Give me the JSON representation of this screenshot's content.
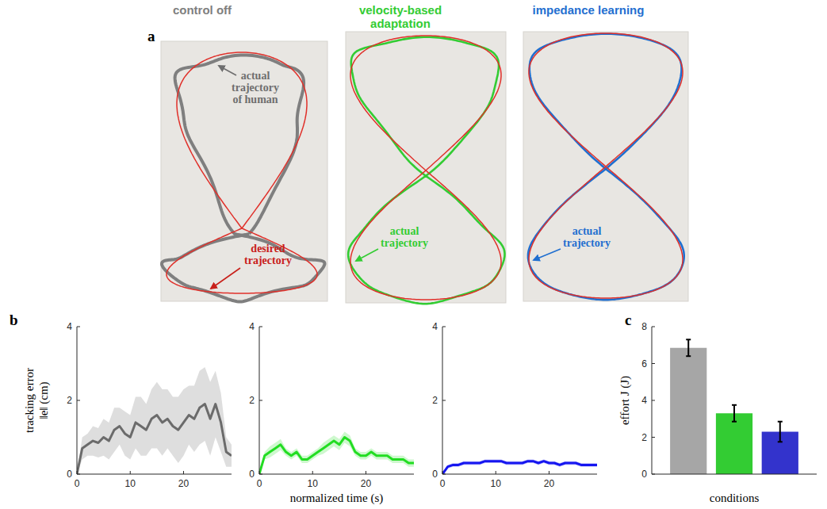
{
  "figure": {
    "panel_labels": [
      "a",
      "b",
      "c"
    ],
    "trajectory_panels": [
      {
        "title": "control off",
        "color": "#7f7f7f",
        "annotations": [
          {
            "lines": [
              "actual",
              "trajectory",
              "of human"
            ],
            "color": "#6e6e6e"
          },
          {
            "lines": [
              "desired",
              "trajectory"
            ],
            "color": "#c8201a"
          }
        ]
      },
      {
        "title": "velocity-based adaptation",
        "color": "#33cc33",
        "annotations": [
          {
            "lines": [
              "actual",
              "trajectory"
            ],
            "color": "#33cc33"
          }
        ]
      },
      {
        "title": "impedance learning",
        "color": "#1f6fd0",
        "annotations": [
          {
            "lines": [
              "actual",
              "trajectory"
            ],
            "color": "#1f6fd0"
          }
        ]
      }
    ]
  },
  "chart_data": [
    {
      "type": "line",
      "y_label": "tracking error ‖e‖ (cm)",
      "x": [
        0,
        1,
        2,
        3,
        4,
        5,
        6,
        7,
        8,
        9,
        10,
        11,
        12,
        13,
        14,
        15,
        16,
        17,
        18,
        19,
        20,
        21,
        22,
        23,
        24,
        25,
        26,
        27,
        28,
        29
      ],
      "xlim": [
        0,
        29
      ],
      "xticks": [
        0,
        10,
        20
      ],
      "ylim": [
        0,
        4
      ],
      "yticks": [
        0,
        2,
        4
      ],
      "series": [
        {
          "color": "#6b6b6b",
          "values": [
            0,
            0.7,
            0.8,
            0.9,
            0.85,
            1.0,
            0.9,
            1.2,
            1.3,
            1.1,
            1.0,
            1.4,
            1.3,
            1.2,
            1.5,
            1.6,
            1.4,
            1.5,
            1.3,
            1.2,
            1.4,
            1.6,
            1.5,
            1.8,
            1.9,
            1.5,
            1.9,
            1.4,
            0.6,
            0.5
          ],
          "errors": [
            0,
            0.3,
            0.3,
            0.4,
            0.4,
            0.5,
            0.5,
            0.6,
            0.5,
            0.6,
            0.6,
            0.7,
            0.8,
            0.7,
            0.8,
            0.9,
            0.9,
            0.8,
            0.8,
            0.9,
            0.9,
            0.8,
            0.9,
            1.0,
            1.0,
            1.0,
            0.9,
            0.8,
            0.4,
            0.3
          ]
        }
      ]
    },
    {
      "type": "line",
      "x_label": "normalized time (s)",
      "x": [
        0,
        1,
        2,
        3,
        4,
        5,
        6,
        7,
        8,
        9,
        10,
        11,
        12,
        13,
        14,
        15,
        16,
        17,
        18,
        19,
        20,
        21,
        22,
        23,
        24,
        25,
        26,
        27,
        28,
        29
      ],
      "xlim": [
        0,
        29
      ],
      "xticks": [
        0,
        10,
        20
      ],
      "ylim": [
        0,
        4
      ],
      "yticks": [
        0,
        2,
        4
      ],
      "series": [
        {
          "color": "#22dd22",
          "values": [
            0,
            0.5,
            0.6,
            0.7,
            0.8,
            0.6,
            0.5,
            0.6,
            0.4,
            0.4,
            0.5,
            0.6,
            0.7,
            0.8,
            0.9,
            0.8,
            1.0,
            0.9,
            0.6,
            0.5,
            0.5,
            0.6,
            0.5,
            0.5,
            0.5,
            0.4,
            0.4,
            0.4,
            0.3,
            0.3
          ],
          "errors": [
            0,
            0.1,
            0.15,
            0.15,
            0.15,
            0.1,
            0.1,
            0.1,
            0.1,
            0.1,
            0.1,
            0.1,
            0.15,
            0.15,
            0.15,
            0.15,
            0.15,
            0.15,
            0.1,
            0.1,
            0.1,
            0.1,
            0.1,
            0.1,
            0.1,
            0.1,
            0.1,
            0.1,
            0.1,
            0.1
          ]
        }
      ]
    },
    {
      "type": "line",
      "x": [
        0,
        1,
        2,
        3,
        4,
        5,
        6,
        7,
        8,
        9,
        10,
        11,
        12,
        13,
        14,
        15,
        16,
        17,
        18,
        19,
        20,
        21,
        22,
        23,
        24,
        25,
        26,
        27,
        28,
        29
      ],
      "xlim": [
        0,
        29
      ],
      "xticks": [
        0,
        10,
        20
      ],
      "ylim": [
        0,
        4
      ],
      "yticks": [
        0,
        2,
        4
      ],
      "series": [
        {
          "color": "#1515f0",
          "values": [
            0,
            0.2,
            0.25,
            0.25,
            0.3,
            0.3,
            0.3,
            0.3,
            0.35,
            0.35,
            0.35,
            0.35,
            0.3,
            0.3,
            0.3,
            0.3,
            0.35,
            0.35,
            0.3,
            0.35,
            0.3,
            0.3,
            0.25,
            0.3,
            0.3,
            0.3,
            0.25,
            0.25,
            0.25,
            0.25
          ],
          "errors": [
            0,
            0.05,
            0.05,
            0.05,
            0.05,
            0.05,
            0.05,
            0.05,
            0.05,
            0.05,
            0.05,
            0.05,
            0.05,
            0.05,
            0.05,
            0.05,
            0.05,
            0.05,
            0.05,
            0.05,
            0.05,
            0.05,
            0.05,
            0.05,
            0.05,
            0.05,
            0.05,
            0.05,
            0.05,
            0.05
          ]
        }
      ]
    },
    {
      "type": "bar",
      "x_label": "conditions",
      "y_label": "effort J (J)",
      "categories": [
        null,
        null,
        null
      ],
      "values": [
        6.85,
        3.3,
        2.3
      ],
      "errors": [
        0.45,
        0.45,
        0.55
      ],
      "colors": [
        "#a6a6a6",
        "#33cc33",
        "#3333cc"
      ],
      "ylim": [
        0,
        8
      ],
      "yticks": [
        0,
        2,
        4,
        6,
        8
      ],
      "tick_labels": "y"
    }
  ]
}
